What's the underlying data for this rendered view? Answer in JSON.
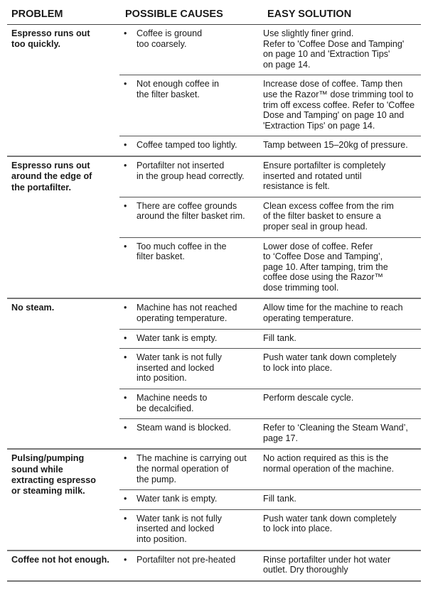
{
  "headers": {
    "problem": "PROBLEM",
    "causes": "POSSIBLE CAUSES",
    "solution": "EASY SOLUTION"
  },
  "groups": [
    {
      "problem": "Espresso runs out\ntoo quickly.",
      "rows": [
        {
          "cause": "Coffee is ground\ntoo coarsely.",
          "solution": "Use slightly finer grind.\nRefer to 'Coffee Dose and Tamping'\non page 10 and 'Extraction Tips'\non page 14."
        },
        {
          "cause": "Not enough coffee in\nthe filter basket.",
          "solution": "Increase dose of coffee. Tamp then\nuse the Razor™ dose trimming tool to\ntrim off excess coffee. Refer to 'Coffee\nDose and Tamping' on page 10 and\n'Extraction Tips' on page 14."
        },
        {
          "cause": "Coffee tamped too lightly.",
          "solution": "Tamp between 15–20kg of pressure."
        }
      ]
    },
    {
      "problem": "Espresso runs out\naround the edge of\nthe portafilter.",
      "rows": [
        {
          "cause": "Portafilter not inserted\nin the group head correctly.",
          "solution": "Ensure portafilter is completely\ninserted and rotated until\nresistance is felt."
        },
        {
          "cause": "There are coffee grounds\naround the filter basket rim.",
          "solution": "Clean excess coffee from the rim\nof the filter basket to ensure a\nproper seal in group head."
        },
        {
          "cause": "Too much coffee in the\nfilter basket.",
          "solution": "Lower dose of coffee. Refer\nto ‘Coffee Dose and Tamping’,\npage 10. After tamping, trim the\ncoffee dose using the Razor™\ndose trimming tool."
        }
      ]
    },
    {
      "problem": "No steam.",
      "rows": [
        {
          "cause": "Machine has not reached\noperating temperature.",
          "solution": "Allow time for the machine to reach\noperating temperature."
        },
        {
          "cause": "Water tank is empty.",
          "solution": "Fill tank."
        },
        {
          "cause": "Water tank is not fully\ninserted and locked\ninto position.",
          "solution": "Push water tank down completely\nto lock into place."
        },
        {
          "cause": "Machine needs to\nbe decalcified.",
          "solution": "Perform descale cycle."
        },
        {
          "cause": "Steam wand is blocked.",
          "solution": "Refer to ‘Cleaning the Steam Wand’,\npage 17."
        }
      ]
    },
    {
      "problem": "Pulsing/pumping\nsound while\nextracting espresso\nor steaming milk.",
      "rows": [
        {
          "cause": "The machine is carrying out\nthe normal operation of\nthe pump.",
          "solution": "No action required as this is the\nnormal operation of the machine."
        },
        {
          "cause": "Water tank is empty.",
          "solution": "Fill tank."
        },
        {
          "cause": "Water tank is not fully\ninserted and locked\ninto position.",
          "solution": "Push water tank down completely\nto lock into place."
        }
      ]
    },
    {
      "problem": "Coffee not hot enough.",
      "rows": [
        {
          "cause": "Portafilter not pre-heated",
          "solution": "Rinse portafilter under hot water\noutlet. Dry thoroughly"
        }
      ]
    }
  ],
  "bullet": "•"
}
